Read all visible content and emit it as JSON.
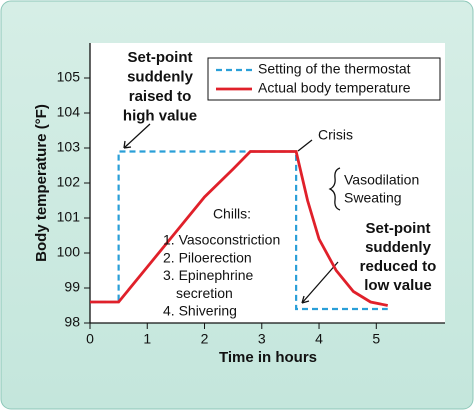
{
  "chart_data": {
    "type": "line",
    "x_label": "Time in hours",
    "y_label": "Body temperature (°F)",
    "xlim": [
      0,
      6.2
    ],
    "xticks": [
      0,
      1,
      2,
      3,
      4,
      5
    ],
    "ylim": [
      98,
      106
    ],
    "yticks": [
      98,
      99,
      100,
      101,
      102,
      103,
      104,
      105
    ],
    "legend": "top-right",
    "series": [
      {
        "name": "Setting of the thermostat",
        "color": "#2a9fd8",
        "dashed": true,
        "x": [
          0,
          0.5,
          0.5,
          3.6,
          3.6,
          5.2
        ],
        "values": [
          98.6,
          98.6,
          102.9,
          102.9,
          98.4,
          98.4
        ]
      },
      {
        "name": "Actual body temperature",
        "color": "#e0202a",
        "dashed": false,
        "x": [
          0,
          0.5,
          1,
          1.5,
          2,
          2.5,
          2.8,
          3.6,
          3.8,
          4,
          4.3,
          4.6,
          4.9,
          5.2
        ],
        "values": [
          98.6,
          98.6,
          99.6,
          100.6,
          101.6,
          102.4,
          102.9,
          102.9,
          101.5,
          100.4,
          99.5,
          98.9,
          98.6,
          98.5
        ]
      }
    ],
    "annotations": [
      {
        "lines": [
          "Set-point",
          "suddenly",
          "raised to",
          "high value"
        ]
      },
      {
        "lines": [
          "Crisis"
        ]
      },
      {
        "lines": [
          "Vasodilation",
          "Sweating"
        ]
      },
      {
        "lines": [
          "Set-point",
          "suddenly",
          "reduced to",
          "low value"
        ]
      },
      {
        "lines": [
          "Chills:",
          "1. Vasoconstriction",
          "2. Piloerection",
          "3. Epinephrine",
          "secretion",
          "4. Shivering"
        ]
      }
    ]
  }
}
